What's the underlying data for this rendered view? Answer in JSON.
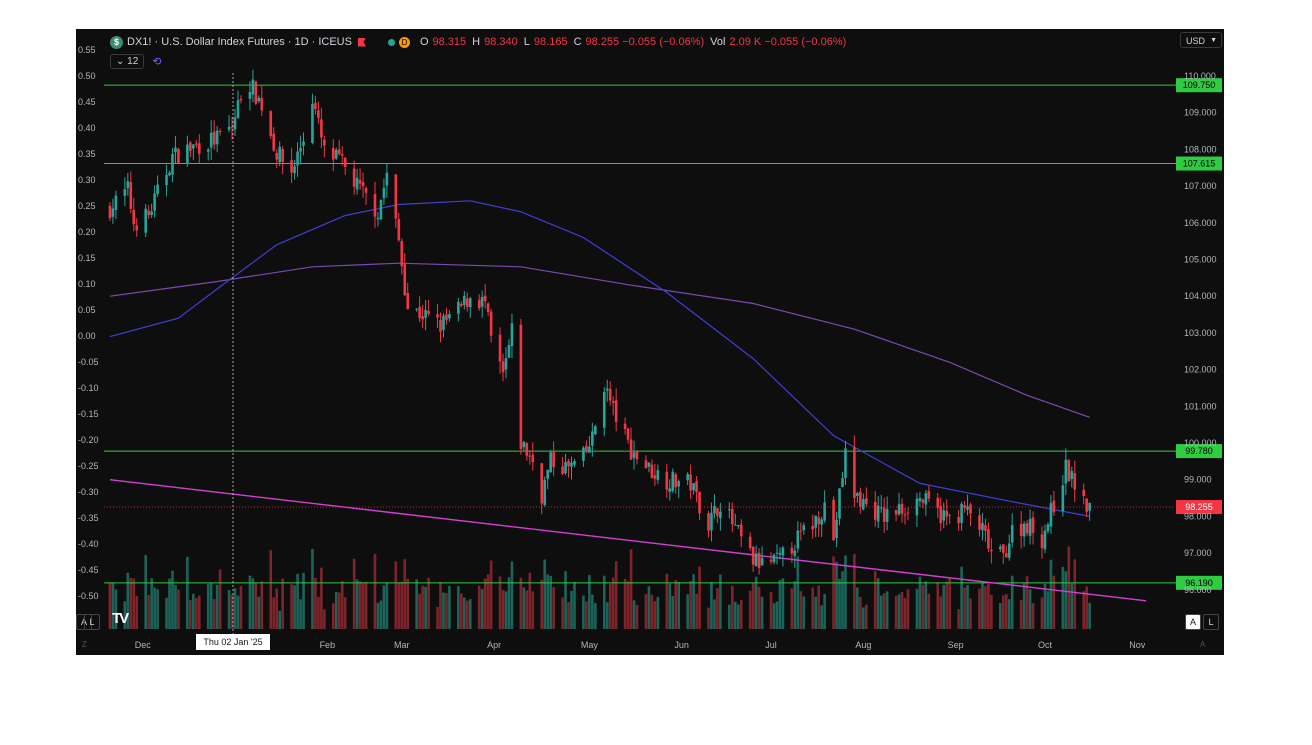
{
  "header": {
    "symbol_icon": "dollar-icon",
    "title": "DX1! · U.S. Dollar Index Futures · 1D · ICEUS",
    "market_badge": "D",
    "ohlc": {
      "o_label": "O",
      "o_value": "98.315",
      "h_label": "H",
      "h_value": "98.340",
      "l_label": "L",
      "l_value": "98.165",
      "c_label": "C",
      "c_value": "98.255 −0.055 (−0.06%)",
      "vol_label": "Vol",
      "vol_value": "2.09 K −0.055 (−0.06%)"
    },
    "indicators_count": "12",
    "currency": "USD"
  },
  "controls": {
    "auto_left": "A",
    "log_left": "L",
    "auto_right": "A",
    "log_right": "L",
    "crosshair_date": "Thu 02 Jan '25"
  },
  "colors": {
    "background": "#0e0e0e",
    "up": "#26a69a",
    "down": "#f23645",
    "hline": "#2ecc40",
    "ma_fast": "#3f3fd9",
    "ma_slow": "#7b4ab0",
    "trendline": "#d43fd4",
    "last_price": "#f23645"
  },
  "chart_data": {
    "type": "candlestick",
    "x_labels": [
      "Dec",
      "Feb",
      "Mar",
      "Apr",
      "May",
      "Jun",
      "Jul",
      "Aug",
      "Sep",
      "Oct",
      "Nov"
    ],
    "y_right_labels": [
      "110.000",
      "109.000",
      "108.000",
      "107.000",
      "106.000",
      "105.000",
      "104.000",
      "103.000",
      "102.000",
      "101.000",
      "100.000",
      "99.000",
      "98.000",
      "97.000",
      "96.000"
    ],
    "y_left_labels": [
      "0.55",
      "0.50",
      "0.45",
      "0.40",
      "0.35",
      "0.30",
      "0.25",
      "0.20",
      "0.15",
      "0.10",
      "0.05",
      "0.00",
      "-0.05",
      "-0.10",
      "-0.15",
      "-0.20",
      "-0.25",
      "-0.30",
      "-0.35",
      "-0.40",
      "-0.45",
      "-0.50"
    ],
    "y_range": [
      95.6,
      110.3
    ],
    "horizontal_levels": [
      "109.750",
      "107.615",
      "99.780",
      "96.190"
    ],
    "last_price": "98.255",
    "closes_path": [
      {
        "x": "2024-11-27",
        "y": 106.4
      },
      {
        "x": "2024-12-03",
        "y": 106.9
      },
      {
        "x": "2024-12-05",
        "y": 106.0
      },
      {
        "x": "2024-12-10",
        "y": 106.2
      },
      {
        "x": "2024-12-13",
        "y": 106.8
      },
      {
        "x": "2024-12-18",
        "y": 107.8
      },
      {
        "x": "2024-12-23",
        "y": 108.0
      },
      {
        "x": "2025-01-02",
        "y": 108.3
      },
      {
        "x": "2025-01-07",
        "y": 108.6
      },
      {
        "x": "2025-01-10",
        "y": 109.5
      },
      {
        "x": "2025-01-13",
        "y": 109.8
      },
      {
        "x": "2025-01-17",
        "y": 109.2
      },
      {
        "x": "2025-01-22",
        "y": 107.9
      },
      {
        "x": "2025-01-27",
        "y": 107.4
      },
      {
        "x": "2025-01-31",
        "y": 108.3
      },
      {
        "x": "2025-02-03",
        "y": 109.4
      },
      {
        "x": "2025-02-07",
        "y": 107.9
      },
      {
        "x": "2025-02-12",
        "y": 107.7
      },
      {
        "x": "2025-02-18",
        "y": 107.0
      },
      {
        "x": "2025-02-25",
        "y": 106.3
      },
      {
        "x": "2025-02-28",
        "y": 107.3
      },
      {
        "x": "2025-03-04",
        "y": 105.5
      },
      {
        "x": "2025-03-07",
        "y": 103.7
      },
      {
        "x": "2025-03-12",
        "y": 103.5
      },
      {
        "x": "2025-03-18",
        "y": 103.2
      },
      {
        "x": "2025-03-24",
        "y": 103.6
      },
      {
        "x": "2025-03-28",
        "y": 104.0
      },
      {
        "x": "2025-04-02",
        "y": 103.8
      },
      {
        "x": "2025-04-04",
        "y": 102.8
      },
      {
        "x": "2025-04-08",
        "y": 101.8
      },
      {
        "x": "2025-04-11",
        "y": 103.0
      },
      {
        "x": "2025-04-14",
        "y": 100.0
      },
      {
        "x": "2025-04-18",
        "y": 99.5
      },
      {
        "x": "2025-04-21",
        "y": 98.6
      },
      {
        "x": "2025-04-24",
        "y": 99.5
      },
      {
        "x": "2025-04-30",
        "y": 99.3
      },
      {
        "x": "2025-05-05",
        "y": 99.6
      },
      {
        "x": "2025-05-08",
        "y": 100.1
      },
      {
        "x": "2025-05-12",
        "y": 101.6
      },
      {
        "x": "2025-05-15",
        "y": 100.9
      },
      {
        "x": "2025-05-21",
        "y": 99.8
      },
      {
        "x": "2025-05-27",
        "y": 99.3
      },
      {
        "x": "2025-06-02",
        "y": 99.0
      },
      {
        "x": "2025-06-10",
        "y": 98.9
      },
      {
        "x": "2025-06-16",
        "y": 97.8
      },
      {
        "x": "2025-06-20",
        "y": 98.4
      },
      {
        "x": "2025-06-26",
        "y": 97.5
      },
      {
        "x": "2025-07-01",
        "y": 96.8
      },
      {
        "x": "2025-07-04",
        "y": 96.7
      },
      {
        "x": "2025-07-10",
        "y": 96.8
      },
      {
        "x": "2025-07-15",
        "y": 97.3
      },
      {
        "x": "2025-07-21",
        "y": 97.8
      },
      {
        "x": "2025-07-25",
        "y": 98.3
      },
      {
        "x": "2025-07-28",
        "y": 97.4
      },
      {
        "x": "2025-08-01",
        "y": 99.7
      },
      {
        "x": "2025-08-04",
        "y": 98.6
      },
      {
        "x": "2025-08-08",
        "y": 98.3
      },
      {
        "x": "2025-08-14",
        "y": 98.0
      },
      {
        "x": "2025-08-20",
        "y": 98.2
      },
      {
        "x": "2025-08-26",
        "y": 98.5
      },
      {
        "x": "2025-09-01",
        "y": 98.1
      },
      {
        "x": "2025-09-05",
        "y": 97.9
      },
      {
        "x": "2025-09-10",
        "y": 98.2
      },
      {
        "x": "2025-09-16",
        "y": 97.6
      },
      {
        "x": "2025-09-19",
        "y": 97.0
      },
      {
        "x": "2025-09-23",
        "y": 96.9
      },
      {
        "x": "2025-09-26",
        "y": 97.6
      },
      {
        "x": "2025-10-01",
        "y": 97.8
      },
      {
        "x": "2025-10-06",
        "y": 97.4
      },
      {
        "x": "2025-10-09",
        "y": 98.1
      },
      {
        "x": "2025-10-14",
        "y": 99.3
      },
      {
        "x": "2025-10-17",
        "y": 98.9
      },
      {
        "x": "2025-10-20",
        "y": 98.3
      },
      {
        "x": "2025-10-22",
        "y": 98.255
      }
    ],
    "ma_fast": [
      {
        "x": "2024-11-27",
        "y": 102.9
      },
      {
        "x": "2024-12-20",
        "y": 103.4
      },
      {
        "x": "2025-01-02",
        "y": 104.2
      },
      {
        "x": "2025-01-22",
        "y": 105.4
      },
      {
        "x": "2025-02-14",
        "y": 106.2
      },
      {
        "x": "2025-03-04",
        "y": 106.5
      },
      {
        "x": "2025-03-28",
        "y": 106.6
      },
      {
        "x": "2025-04-14",
        "y": 106.3
      },
      {
        "x": "2025-05-05",
        "y": 105.6
      },
      {
        "x": "2025-06-02",
        "y": 104.1
      },
      {
        "x": "2025-07-01",
        "y": 102.3
      },
      {
        "x": "2025-07-28",
        "y": 100.2
      },
      {
        "x": "2025-08-26",
        "y": 98.9
      },
      {
        "x": "2025-09-26",
        "y": 98.4
      },
      {
        "x": "2025-10-22",
        "y": 98.0
      }
    ],
    "ma_slow": [
      {
        "x": "2024-11-27",
        "y": 104.0
      },
      {
        "x": "2025-01-02",
        "y": 104.4
      },
      {
        "x": "2025-02-03",
        "y": 104.8
      },
      {
        "x": "2025-03-04",
        "y": 104.9
      },
      {
        "x": "2025-04-14",
        "y": 104.8
      },
      {
        "x": "2025-05-21",
        "y": 104.3
      },
      {
        "x": "2025-07-01",
        "y": 103.8
      },
      {
        "x": "2025-08-04",
        "y": 103.1
      },
      {
        "x": "2025-09-05",
        "y": 102.2
      },
      {
        "x": "2025-10-01",
        "y": 101.3
      },
      {
        "x": "2025-10-22",
        "y": 100.7
      }
    ],
    "trendline": [
      {
        "x": "2024-11-27",
        "y": 99.0
      },
      {
        "x": "2025-11-10",
        "y": 95.7
      }
    ]
  }
}
